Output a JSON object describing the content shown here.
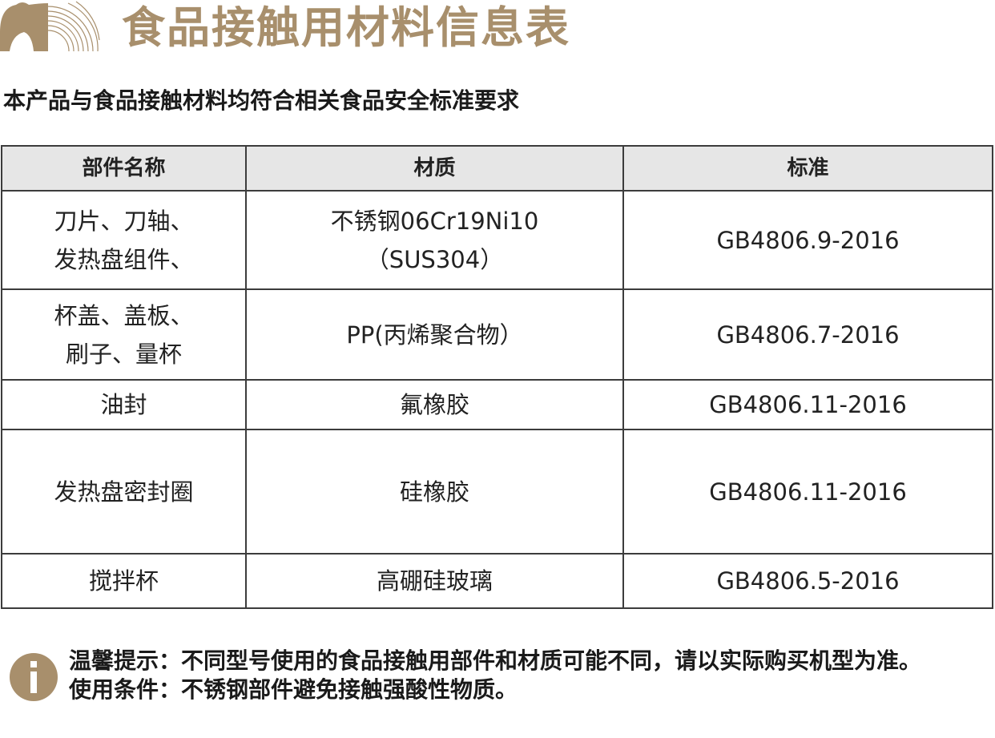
{
  "header": {
    "title": "食品接触用材料信息表",
    "subtitle": "本产品与食品接触材料均符合相关食品安全标准要求",
    "accent_color": "#a88f6c"
  },
  "table": {
    "columns": [
      "部件名称",
      "材质",
      "标准"
    ],
    "rows": [
      {
        "part": [
          "刀片、刀轴、",
          "发热盘组件、"
        ],
        "material": [
          "不锈钢06Cr19Ni10",
          "（SUS304）"
        ],
        "standard": "GB4806.9-2016"
      },
      {
        "part": [
          "杯盖、盖板、",
          "刷子、量杯"
        ],
        "material": [
          "PP(丙烯聚合物）"
        ],
        "standard": "GB4806.7-2016"
      },
      {
        "part": [
          "油封"
        ],
        "material": [
          "氟橡胶"
        ],
        "standard": "GB4806.11-2016"
      },
      {
        "part": [
          "发热盘密封圈"
        ],
        "material": [
          "硅橡胶"
        ],
        "standard": "GB4806.11-2016"
      },
      {
        "part": [
          "搅拌杯"
        ],
        "material": [
          "高硼硅玻璃"
        ],
        "standard": "GB4806.5-2016"
      }
    ]
  },
  "notes": {
    "icon": "info-icon",
    "tip": "温馨提示：不同型号使用的食品接触用部件和材质可能不同，请以实际购买机型为准。",
    "condition": "使用条件：不锈钢部件避免接触强酸性物质。"
  }
}
